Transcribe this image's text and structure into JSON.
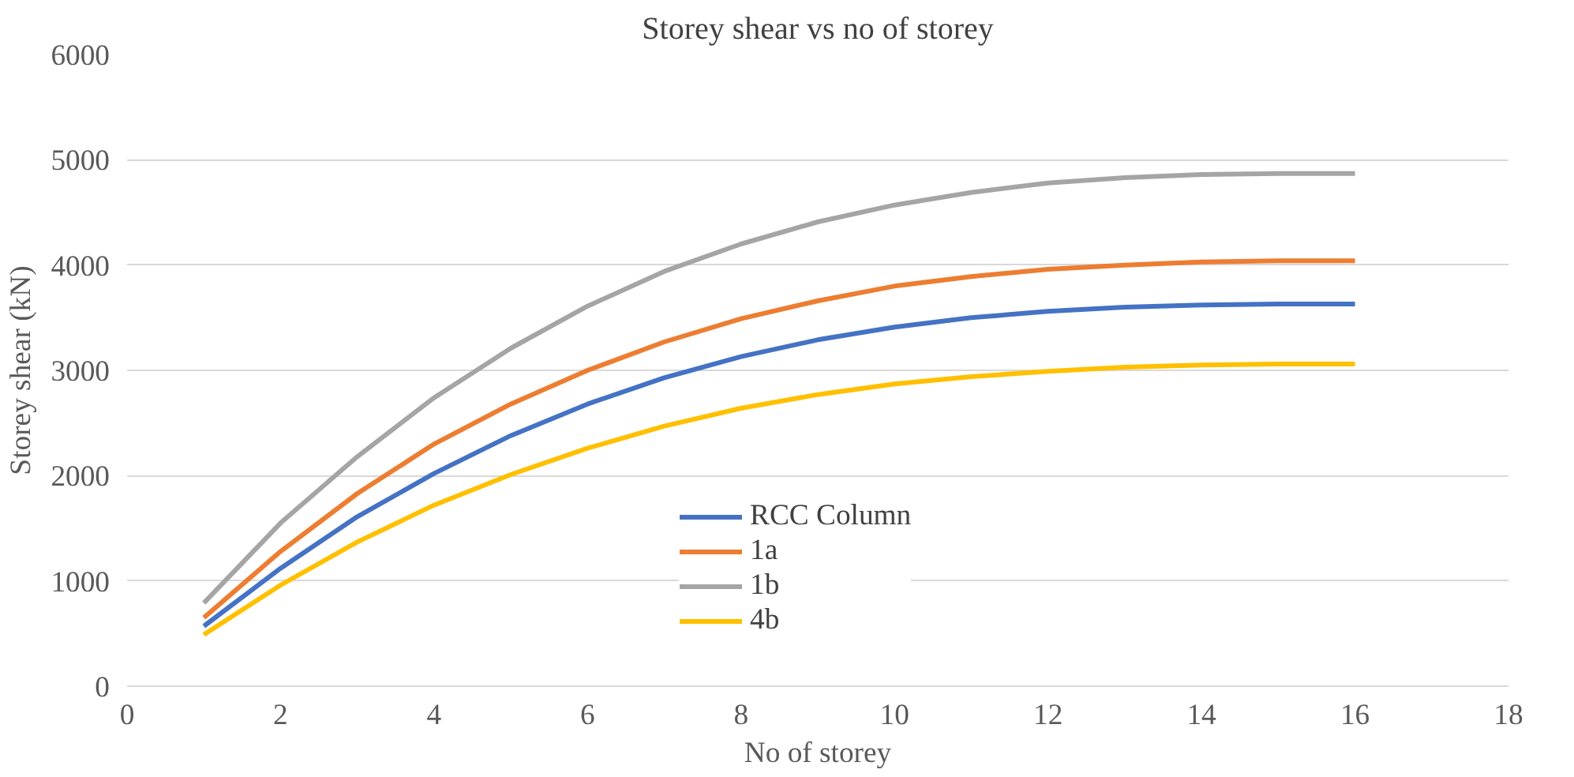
{
  "chart_data": {
    "type": "line",
    "title": "Storey shear vs no of storey",
    "xlabel": "No of storey",
    "ylabel": "Storey shear (kN)",
    "x": [
      1,
      2,
      3,
      4,
      5,
      6,
      7,
      8,
      9,
      10,
      11,
      12,
      13,
      14,
      15,
      16
    ],
    "series": [
      {
        "name": "RCC Column",
        "color": "#4472c4",
        "values": [
          570,
          1120,
          1610,
          2020,
          2380,
          2680,
          2930,
          3130,
          3290,
          3410,
          3500,
          3560,
          3600,
          3620,
          3630,
          3630
        ]
      },
      {
        "name": "1a",
        "color": "#ed7d31",
        "values": [
          650,
          1280,
          1830,
          2300,
          2680,
          3000,
          3270,
          3490,
          3660,
          3800,
          3890,
          3960,
          4000,
          4030,
          4040,
          4040
        ]
      },
      {
        "name": "1b",
        "color": "#a5a5a5",
        "values": [
          790,
          1550,
          2180,
          2740,
          3210,
          3610,
          3940,
          4200,
          4410,
          4570,
          4690,
          4780,
          4830,
          4860,
          4870,
          4870
        ]
      },
      {
        "name": "4b",
        "color": "#ffc000",
        "values": [
          490,
          960,
          1370,
          1720,
          2010,
          2260,
          2470,
          2640,
          2770,
          2870,
          2940,
          2990,
          3030,
          3050,
          3060,
          3060
        ]
      }
    ],
    "xlim": [
      0,
      18
    ],
    "xticks": [
      0,
      2,
      4,
      6,
      8,
      10,
      12,
      14,
      16,
      18
    ],
    "ylim": [
      0,
      6000
    ],
    "yticks": [
      0,
      1000,
      2000,
      3000,
      4000,
      5000,
      6000
    ],
    "grid": "y",
    "legend": "right",
    "marker": "none",
    "line_style": "solid"
  }
}
